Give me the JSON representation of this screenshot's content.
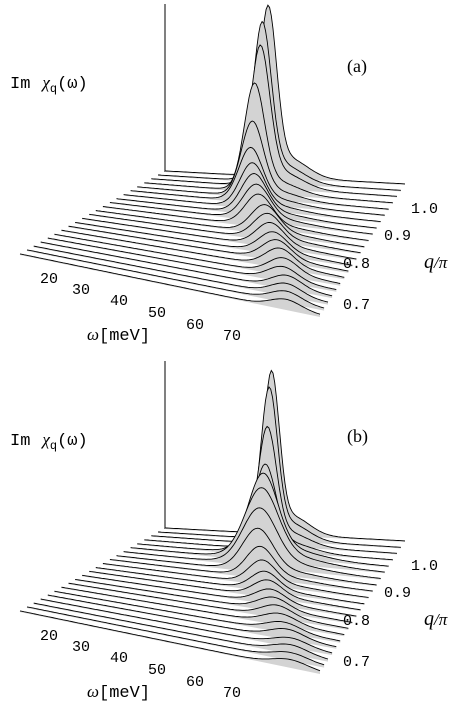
{
  "chart_data": [
    {
      "type": "area",
      "panel_label": "(a)",
      "zlabel": {
        "prefix": "Im",
        "symbol": "χ",
        "sub": "q",
        "arg": "(ω)"
      },
      "xlabel": {
        "symbol": "ω",
        "unit": "[meV]"
      },
      "ylabel": {
        "symbol": "q",
        "unit": "/π"
      },
      "x_ticks": [
        "20",
        "30",
        "40",
        "50",
        "60",
        "70"
      ],
      "y_ticks": [
        "0.7",
        "0.8",
        "0.9",
        "1.0"
      ],
      "x_range": [
        10,
        80
      ],
      "y_range": [
        0.65,
        1.0
      ],
      "q": [
        0.65,
        0.667,
        0.683,
        0.7,
        0.717,
        0.733,
        0.75,
        0.767,
        0.783,
        0.8,
        0.817,
        0.833,
        0.85,
        0.867,
        0.883,
        0.9,
        0.917,
        0.933,
        0.95,
        0.967,
        0.983,
        1.0
      ],
      "peak_omega": [
        72,
        71,
        70,
        69,
        67,
        66,
        64,
        62,
        60,
        58,
        56,
        54,
        51,
        49,
        47,
        45,
        43,
        42,
        41,
        41,
        40,
        40
      ],
      "peak_height": [
        0.4,
        0.45,
        0.5,
        0.55,
        0.6,
        0.7,
        0.8,
        0.85,
        0.9,
        1.0,
        1.1,
        1.2,
        1.35,
        1.5,
        1.7,
        1.9,
        2.3,
        3.2,
        4.6,
        6.0,
        6.8,
        7.3
      ],
      "peak_width": [
        3.5,
        3.5,
        3.5,
        3.5,
        3.5,
        3.5,
        3.5,
        3.5,
        3.5,
        3.5,
        3.5,
        3.5,
        3.5,
        3.5,
        3.4,
        3.3,
        3.2,
        3.0,
        2.8,
        2.7,
        2.6,
        2.5
      ]
    },
    {
      "type": "area",
      "panel_label": "(b)",
      "zlabel": {
        "prefix": "Im",
        "symbol": "χ",
        "sub": "q",
        "arg": "(ω)"
      },
      "xlabel": {
        "symbol": "ω",
        "unit": "[meV]"
      },
      "ylabel": {
        "symbol": "q",
        "unit": "/π"
      },
      "x_ticks": [
        "20",
        "30",
        "40",
        "50",
        "60",
        "70"
      ],
      "y_ticks": [
        "0.7",
        "0.8",
        "0.9",
        "1.0"
      ],
      "x_range": [
        10,
        80
      ],
      "y_range": [
        0.65,
        1.0
      ],
      "q": [
        0.65,
        0.667,
        0.683,
        0.7,
        0.717,
        0.733,
        0.75,
        0.767,
        0.783,
        0.8,
        0.817,
        0.833,
        0.85,
        0.867,
        0.883,
        0.9,
        0.917,
        0.933,
        0.95,
        0.967,
        0.983,
        1.0
      ],
      "peak_omega": [
        73,
        72,
        71,
        70,
        68,
        66,
        64,
        62,
        60,
        58,
        56,
        54,
        52,
        50,
        48,
        47,
        46,
        45,
        44,
        43,
        42,
        41
      ],
      "peak_height": [
        0.3,
        0.3,
        0.35,
        0.35,
        0.4,
        0.4,
        0.45,
        0.5,
        0.55,
        0.6,
        0.7,
        0.8,
        1.0,
        1.3,
        1.8,
        2.4,
        3.0,
        3.4,
        3.6,
        5.0,
        6.5,
        7.0
      ],
      "peak_width": [
        4.0,
        4.0,
        4.0,
        4.0,
        4.0,
        4.0,
        4.0,
        3.8,
        3.8,
        3.7,
        3.6,
        3.5,
        3.5,
        3.6,
        4.0,
        4.5,
        4.5,
        4.0,
        3.0,
        2.6,
        2.4,
        2.3
      ]
    }
  ]
}
